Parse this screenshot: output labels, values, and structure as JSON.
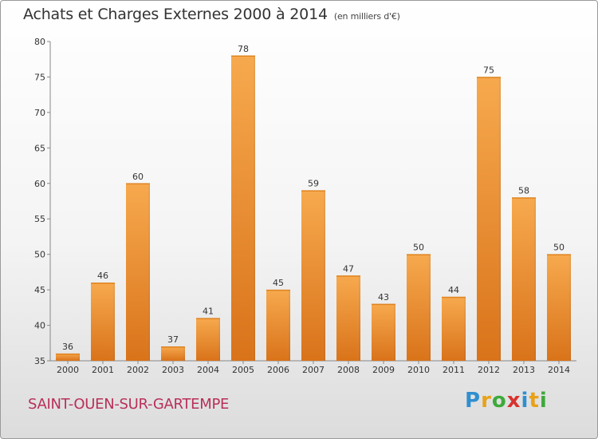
{
  "header": {
    "title": "Achats et Charges Externes 2000 à 2014",
    "unit": "(en milliers d'€)"
  },
  "footer": {
    "commune": "SAINT-OUEN-SUR-GARTEMPE",
    "logo_letters": [
      "P",
      "r",
      "o",
      "x",
      "i",
      "t",
      "i"
    ]
  },
  "colors": {
    "bar_light": "#f7a94e",
    "bar_dark": "#d9731a",
    "commune_text": "#b8305a"
  },
  "chart_data": {
    "type": "bar",
    "title": "Achats et Charges Externes 2000 à 2014",
    "subtitle": "(en milliers d'€)",
    "categories": [
      "2000",
      "2001",
      "2002",
      "2003",
      "2004",
      "2005",
      "2006",
      "2007",
      "2008",
      "2009",
      "2010",
      "2011",
      "2012",
      "2013",
      "2014"
    ],
    "values": [
      36,
      46,
      60,
      37,
      41,
      78,
      45,
      59,
      47,
      43,
      50,
      44,
      75,
      58,
      50
    ],
    "ylim": [
      35,
      80
    ],
    "yticks": [
      35,
      40,
      45,
      50,
      55,
      60,
      65,
      70,
      75,
      80
    ],
    "grid": false,
    "data_labels": true
  }
}
